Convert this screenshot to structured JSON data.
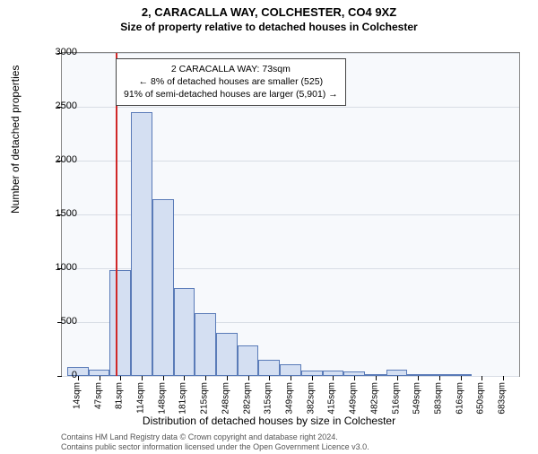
{
  "title_main": "2, CARACALLA WAY, COLCHESTER, CO4 9XZ",
  "title_sub": "Size of property relative to detached houses in Colchester",
  "ylabel": "Number of detached properties",
  "xlabel": "Distribution of detached houses by size in Colchester",
  "info_box": {
    "line1": "2 CARACALLA WAY: 73sqm",
    "line2": "← 8% of detached houses are smaller (525)",
    "line3": "91% of semi-detached houses are larger (5,901) →"
  },
  "attribution": {
    "line1": "Contains HM Land Registry data © Crown copyright and database right 2024.",
    "line2": "Contains public sector information licensed under the Open Government Licence v3.0."
  },
  "chart": {
    "type": "histogram",
    "background_color": "#f7f9fc",
    "grid_color": "#d8dde5",
    "bar_fill": "#d4dff2",
    "bar_stroke": "#5a7bb8",
    "marker_color": "#d02828",
    "ylim": [
      0,
      3000
    ],
    "yticks": [
      0,
      500,
      1000,
      1500,
      2000,
      2500,
      3000
    ],
    "xtick_labels": [
      "14sqm",
      "47sqm",
      "81sqm",
      "114sqm",
      "148sqm",
      "181sqm",
      "215sqm",
      "248sqm",
      "282sqm",
      "315sqm",
      "349sqm",
      "382sqm",
      "415sqm",
      "449sqm",
      "482sqm",
      "516sqm",
      "549sqm",
      "583sqm",
      "616sqm",
      "650sqm",
      "683sqm"
    ],
    "marker_x_sqm": 73,
    "x_start_sqm": 14,
    "bin_width_sqm": 33.45,
    "values": [
      80,
      60,
      980,
      2450,
      1640,
      820,
      580,
      400,
      280,
      150,
      110,
      50,
      50,
      40,
      20,
      60,
      5,
      15,
      5,
      0,
      0
    ],
    "font_family": "Arial",
    "title_fontsize": 13,
    "label_fontsize": 12,
    "tick_fontsize": 11
  }
}
